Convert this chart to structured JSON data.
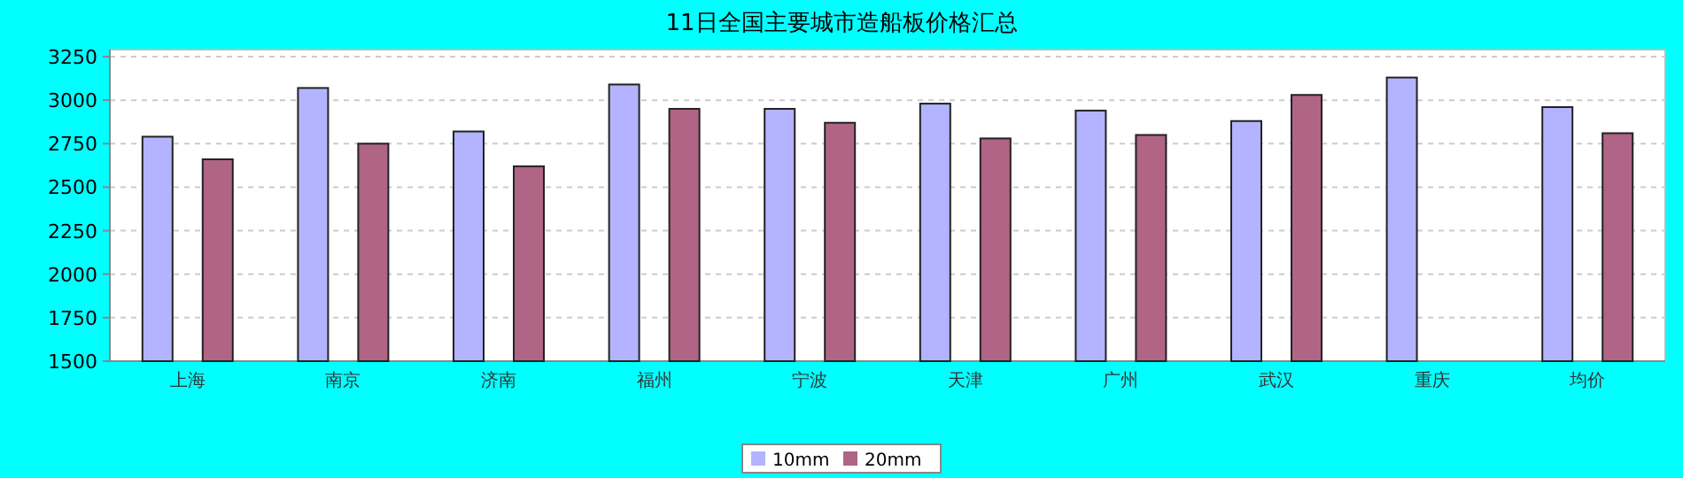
{
  "chart_data": {
    "type": "bar",
    "title": "11日全国主要城市造船板价格汇总",
    "categories": [
      "上海",
      "南京",
      "济南",
      "福州",
      "宁波",
      "天津",
      "广州",
      "武汉",
      "重庆",
      "均价"
    ],
    "series": [
      {
        "name": "10mm",
        "color": "#b3b3ff",
        "values": [
          2790,
          3070,
          2820,
          3090,
          2950,
          2980,
          2940,
          2880,
          3130,
          2960
        ]
      },
      {
        "name": "20mm",
        "color": "#b06486",
        "values": [
          2660,
          2750,
          2620,
          2950,
          2870,
          2780,
          2800,
          3030,
          null,
          2810
        ]
      }
    ],
    "ylim": [
      1500,
      3250
    ],
    "yticks": [
      1500,
      1750,
      2000,
      2250,
      2500,
      2750,
      3000,
      3250
    ],
    "grid": "y",
    "legend": "bottom"
  }
}
